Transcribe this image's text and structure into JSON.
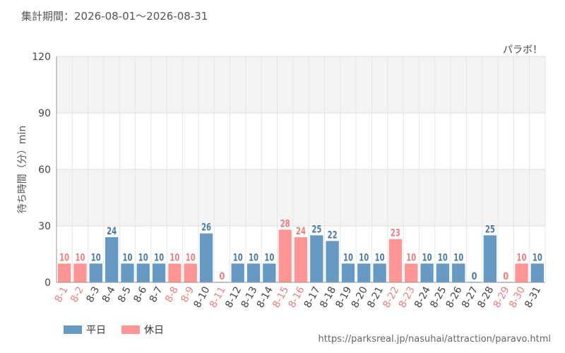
{
  "period_label": "集計期間：2026-08-01～2026-08-31",
  "attraction_name": "パラボ！",
  "source_url": "https://parksreal.jp/nasuhai/attraction/paravo.html",
  "legend": [
    {
      "label": "平日",
      "color": "#6699c4"
    },
    {
      "label": "休日",
      "color": "#ff9494"
    }
  ],
  "chart_data": {
    "type": "bar",
    "title": "",
    "ylabel": "待ち時間（分）min",
    "xlabel": "",
    "ylim": [
      0,
      120
    ],
    "yticks": [
      0,
      30,
      60,
      90,
      120
    ],
    "categories": [
      "8-1",
      "8-2",
      "8-3",
      "8-4",
      "8-5",
      "8-6",
      "8-7",
      "8-8",
      "8-9",
      "8-10",
      "8-11",
      "8-12",
      "8-13",
      "8-14",
      "8-15",
      "8-16",
      "8-17",
      "8-18",
      "8-19",
      "8-20",
      "8-21",
      "8-22",
      "8-23",
      "8-24",
      "8-25",
      "8-26",
      "8-27",
      "8-28",
      "8-29",
      "8-30",
      "8-31"
    ],
    "values": [
      10,
      10,
      10,
      24,
      10,
      10,
      10,
      10,
      10,
      26,
      0,
      10,
      10,
      10,
      28,
      24,
      25,
      22,
      10,
      10,
      10,
      23,
      10,
      10,
      10,
      10,
      0,
      25,
      0,
      10,
      10
    ],
    "holiday": [
      true,
      true,
      false,
      false,
      false,
      false,
      false,
      true,
      true,
      false,
      true,
      false,
      false,
      false,
      true,
      true,
      false,
      false,
      false,
      false,
      false,
      true,
      true,
      false,
      false,
      false,
      false,
      false,
      true,
      true,
      false
    ],
    "colors": {
      "weekday": "#6699c4",
      "holiday": "#ff9494",
      "weekday_text": "#4a7aa8",
      "holiday_text": "#f07d7d"
    },
    "grid": true,
    "legend_position": "bottom-left"
  }
}
